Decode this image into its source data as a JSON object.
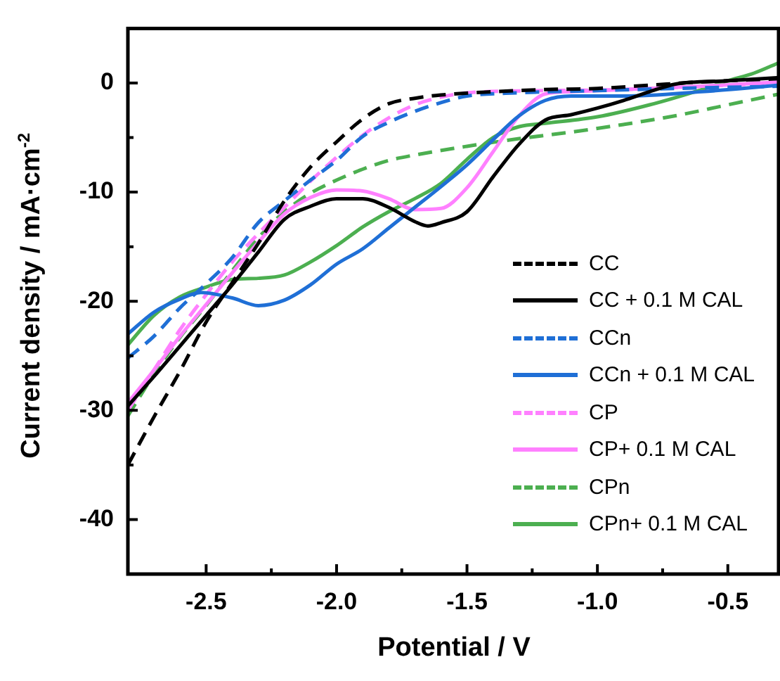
{
  "chart_data": {
    "type": "line",
    "xlabel": "Potential / V",
    "ylabel": "Current density / mA·cm$^{-2}$",
    "xlim": [
      -2.8,
      -0.3
    ],
    "xticks": [
      -2.5,
      {
        "value": -2,
        "label": "-2.0"
      },
      -1.5,
      {
        "value": -1,
        "label": "-1.0"
      },
      -0.5
    ],
    "ylim": [
      -45,
      5
    ],
    "yticks": [
      0,
      -10,
      -20,
      -30,
      -40
    ],
    "grid": false,
    "legend": "bottom right",
    "marker": "none",
    "series": [
      {
        "name": "CC",
        "color": "#000000",
        "line_style": "dashed",
        "x": [
          -2.8,
          -2.7,
          -2.6,
          -2.5,
          -2.4,
          -2.3,
          -2.2,
          -2.1,
          -2.0,
          -1.9,
          -1.8,
          -1.7,
          -1.6,
          -1.4,
          -1.2,
          -1.0,
          -0.8,
          -0.6,
          -0.3
        ],
        "values": [
          -35,
          -30.6,
          -26.4,
          -21.9,
          -18.3,
          -14.7,
          -10.8,
          -7.7,
          -5.4,
          -3.3,
          -1.9,
          -1.4,
          -1.1,
          -0.8,
          -0.6,
          -0.5,
          -0.2,
          0.1,
          0.4
        ]
      },
      {
        "name": "CC + 0.1 M CAL",
        "color": "#000000",
        "line_style": "solid",
        "x": [
          -2.8,
          -2.7,
          -2.6,
          -2.5,
          -2.4,
          -2.3,
          -2.2,
          -2.1,
          -2.0,
          -1.9,
          -1.8,
          -1.7,
          -1.65,
          -1.6,
          -1.5,
          -1.4,
          -1.3,
          -1.2,
          -1.1,
          -1.0,
          -0.9,
          -0.8,
          -0.7,
          -0.5,
          -0.3
        ],
        "values": [
          -29.6,
          -26.9,
          -24.1,
          -21.3,
          -18.5,
          -15.5,
          -12.5,
          -11.3,
          -10.6,
          -10.6,
          -11.4,
          -12.7,
          -13.1,
          -12.8,
          -11.8,
          -8.6,
          -5.6,
          -3.4,
          -2.9,
          -2.3,
          -1.6,
          -0.8,
          -0.1,
          0.2,
          0.5
        ]
      },
      {
        "name": "CCn",
        "color": "#1f6fd6",
        "line_style": "dashed",
        "x": [
          -2.8,
          -2.7,
          -2.6,
          -2.5,
          -2.4,
          -2.3,
          -2.2,
          -2.1,
          -2.0,
          -1.9,
          -1.8,
          -1.7,
          -1.6,
          -1.5,
          -1.3,
          -1.0,
          -0.7,
          -0.3
        ],
        "values": [
          -25.2,
          -23.2,
          -20.6,
          -18.4,
          -16.0,
          -12.8,
          -10.8,
          -8.9,
          -7.1,
          -4.9,
          -3.6,
          -2.6,
          -1.8,
          -1.2,
          -0.9,
          -0.7,
          -0.5,
          -0.3
        ]
      },
      {
        "name": "CCn + 0.1 M CAL",
        "color": "#1f6fd6",
        "line_style": "solid",
        "x": [
          -2.8,
          -2.7,
          -2.6,
          -2.52,
          -2.4,
          -2.3,
          -2.2,
          -2.1,
          -2.0,
          -1.9,
          -1.8,
          -1.7,
          -1.6,
          -1.5,
          -1.4,
          -1.3,
          -1.2,
          -1.1,
          -0.9,
          -0.6,
          -0.3
        ],
        "values": [
          -23.0,
          -21.0,
          -19.8,
          -19.2,
          -19.7,
          -20.4,
          -19.9,
          -18.5,
          -16.6,
          -15.2,
          -13.3,
          -11.4,
          -9.5,
          -7.5,
          -5.2,
          -3.0,
          -1.6,
          -1.2,
          -1.2,
          -0.8,
          -0.2
        ]
      },
      {
        "name": "CP",
        "color": "#ff80ff",
        "line_style": "dashed",
        "x": [
          -2.8,
          -2.7,
          -2.6,
          -2.5,
          -2.4,
          -2.3,
          -2.2,
          -2.1,
          -2.0,
          -1.9,
          -1.8,
          -1.7,
          -1.6,
          -1.5,
          -1.2,
          -0.9,
          -0.6,
          -0.3
        ],
        "values": [
          -30.0,
          -26.3,
          -22.6,
          -19.4,
          -16.4,
          -13.8,
          -11.4,
          -9.0,
          -6.8,
          -4.8,
          -3.2,
          -2.0,
          -1.3,
          -0.9,
          -0.7,
          -0.6,
          -0.3,
          0.0
        ]
      },
      {
        "name": "CP+ 0.1 M CAL",
        "color": "#ff80ff",
        "line_style": "solid",
        "x": [
          -2.8,
          -2.7,
          -2.6,
          -2.5,
          -2.4,
          -2.3,
          -2.2,
          -2.1,
          -2.0,
          -1.9,
          -1.8,
          -1.7,
          -1.6,
          -1.5,
          -1.4,
          -1.3,
          -1.2,
          -1.1,
          -0.9,
          -0.6,
          -0.3
        ],
        "values": [
          -29.3,
          -26.3,
          -23.2,
          -20.3,
          -17.4,
          -14.6,
          -12.0,
          -10.5,
          -9.8,
          -9.9,
          -10.6,
          -11.6,
          -11.5,
          -9.6,
          -6.3,
          -3.0,
          -1.0,
          -0.8,
          -0.6,
          -0.3,
          0.1
        ]
      },
      {
        "name": "CPn",
        "color": "#4caf50",
        "line_style": "dashed",
        "x": [
          -2.8,
          -2.7,
          -2.6,
          -2.5,
          -2.4,
          -2.3,
          -2.2,
          -2.1,
          -2.0,
          -1.9,
          -1.8,
          -1.7,
          -1.5,
          -1.3,
          -1.1,
          -0.9,
          -0.7,
          -0.5,
          -0.3
        ],
        "values": [
          -30.5,
          -26.7,
          -23.3,
          -20.4,
          -17.2,
          -14.2,
          -11.8,
          -10.1,
          -8.9,
          -7.9,
          -7.1,
          -6.6,
          -5.8,
          -5.1,
          -4.5,
          -3.8,
          -3.0,
          -2.0,
          -1.0
        ]
      },
      {
        "name": "CPn+ 0.1 M CAL",
        "color": "#4caf50",
        "line_style": "solid",
        "x": [
          -2.8,
          -2.7,
          -2.6,
          -2.5,
          -2.4,
          -2.3,
          -2.2,
          -2.1,
          -2.0,
          -1.9,
          -1.8,
          -1.7,
          -1.6,
          -1.5,
          -1.4,
          -1.3,
          -1.2,
          -1.0,
          -0.8,
          -0.6,
          -0.5,
          -0.4,
          -0.3
        ],
        "values": [
          -24.0,
          -21.3,
          -19.6,
          -18.7,
          -18.0,
          -17.9,
          -17.6,
          -16.4,
          -14.9,
          -13.2,
          -11.8,
          -10.6,
          -9.2,
          -7.0,
          -5.0,
          -4.0,
          -3.7,
          -3.1,
          -2.0,
          -0.6,
          0.2,
          0.9,
          1.9
        ]
      }
    ]
  }
}
